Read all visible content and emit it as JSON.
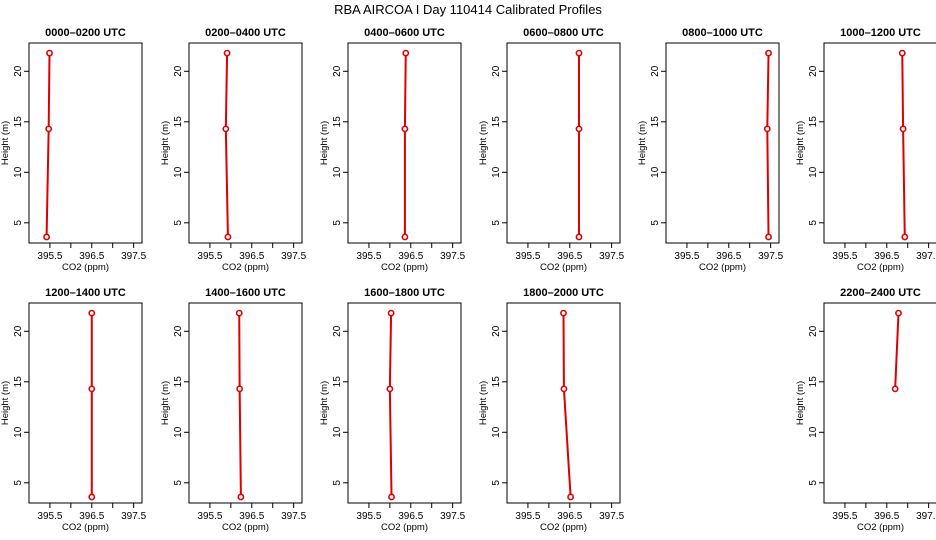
{
  "title": "RBA AIRCOA I  Day 110414  Calibrated Profiles",
  "chart_data": {
    "type": "line",
    "xlabel": "CO2 (ppm)",
    "ylabel": "Height (m)",
    "xlim": [
      395.0,
      397.7
    ],
    "ylim": [
      3.0,
      22.8
    ],
    "x_ticks": [
      "395.5",
      "396.5",
      "397.5"
    ],
    "y_ticks": [
      "5",
      "10",
      "15",
      "20"
    ],
    "heights": [
      3.6,
      14.3,
      21.8
    ],
    "line_color": "#dd0000",
    "panels": [
      {
        "title": "0000–0200 UTC",
        "x": [
          395.42,
          395.47,
          395.49
        ]
      },
      {
        "title": "0200–0400 UTC",
        "x": [
          395.93,
          395.88,
          395.91
        ]
      },
      {
        "title": "0400–0600 UTC",
        "x": [
          396.36,
          396.36,
          396.38
        ]
      },
      {
        "title": "0600–0800 UTC",
        "x": [
          396.72,
          396.72,
          396.72
        ]
      },
      {
        "title": "0800–1000 UTC",
        "x": [
          397.45,
          397.42,
          397.45
        ]
      },
      {
        "title": "1000–1200 UTC",
        "x": [
          396.93,
          396.89,
          396.87
        ]
      },
      {
        "title": "1200–1400 UTC",
        "x": [
          396.5,
          396.5,
          396.5
        ]
      },
      {
        "title": "1400–1600 UTC",
        "x": [
          396.24,
          396.21,
          396.2
        ]
      },
      {
        "title": "1600–1800 UTC",
        "x": [
          396.04,
          396.0,
          396.03
        ]
      },
      {
        "title": "1800–2000 UTC",
        "x": [
          396.52,
          396.36,
          396.35
        ]
      },
      {
        "title": "",
        "x": [],
        "empty": true
      },
      {
        "title": "2200–2400 UTC",
        "x": [
          null,
          396.7,
          396.78
        ]
      }
    ]
  }
}
